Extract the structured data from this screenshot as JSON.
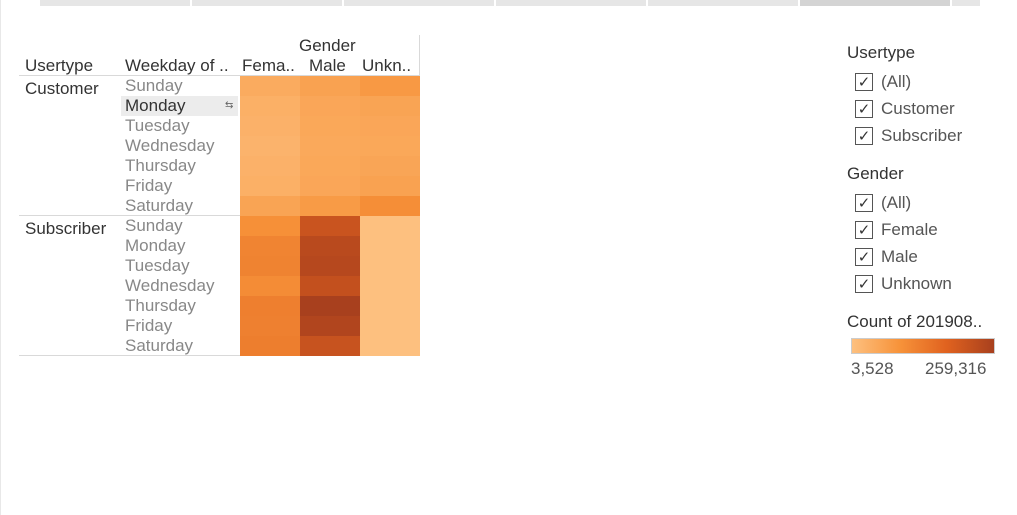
{
  "chart_data": {
    "type": "heatmap",
    "column_header_group": "Gender",
    "row_header_1": "Usertype",
    "row_header_2": "Weekday of ..",
    "columns": [
      "Fema..",
      "Male",
      "Unkn.."
    ],
    "row_groups": [
      {
        "name": "Customer",
        "days": [
          "Sunday",
          "Monday",
          "Tuesday",
          "Wednesday",
          "Thursday",
          "Friday",
          "Saturday"
        ]
      },
      {
        "name": "Subscriber",
        "days": [
          "Sunday",
          "Monday",
          "Tuesday",
          "Wednesday",
          "Thursday",
          "Friday",
          "Saturday"
        ]
      }
    ],
    "values": [
      [
        12000,
        20000,
        30000
      ],
      [
        9000,
        16000,
        18000
      ],
      [
        8000,
        15000,
        16000
      ],
      [
        7000,
        14000,
        15000
      ],
      [
        8000,
        15000,
        17000
      ],
      [
        9000,
        16000,
        20000
      ],
      [
        18000,
        28000,
        45000
      ],
      [
        42000,
        175000,
        3528
      ],
      [
        60000,
        215000,
        3528
      ],
      [
        62000,
        222000,
        3528
      ],
      [
        48000,
        190000,
        3528
      ],
      [
        68000,
        259316,
        3528
      ],
      [
        66000,
        235000,
        3528
      ],
      [
        70000,
        180000,
        3528
      ]
    ],
    "color_range": {
      "min": 3528,
      "max": 259316,
      "min_label": "3,528",
      "max_label": "259,316",
      "min_color": "#fdc07f",
      "max_color": "#a8401e"
    }
  },
  "filters": {
    "usertype": {
      "title": "Usertype",
      "items": [
        "(All)",
        "Customer",
        "Subscriber"
      ]
    },
    "gender": {
      "title": "Gender",
      "items": [
        "(All)",
        "Female",
        "Male",
        "Unknown"
      ]
    }
  },
  "legend": {
    "title": "Count of 201908.."
  },
  "check_glyph": "✓"
}
